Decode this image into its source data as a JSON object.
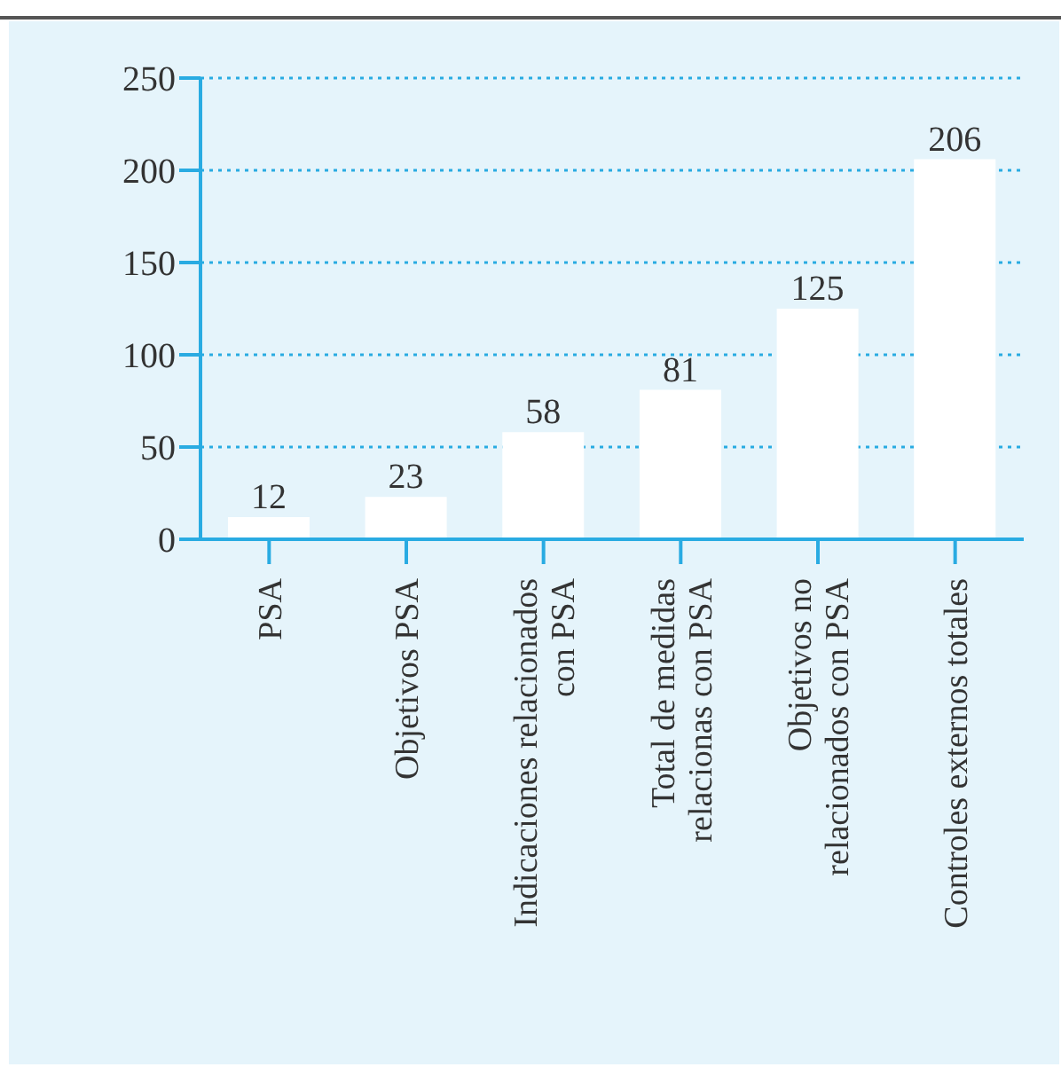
{
  "chart_data": {
    "type": "bar",
    "categories": [
      "PSA",
      "Objetivos PSA",
      "Indicaciones relacionados\ncon PSA",
      "Total de medidas\nrelacionas con PSA",
      "Objetivos no\nrelacionados con PSA",
      "Controles externos totales"
    ],
    "values": [
      12,
      23,
      58,
      81,
      125,
      206
    ],
    "color": "#ffffff",
    "ylim": [
      0,
      250
    ],
    "yticks": [
      0,
      50,
      100,
      150,
      200,
      250
    ],
    "grid": "y",
    "data_labels": true
  }
}
